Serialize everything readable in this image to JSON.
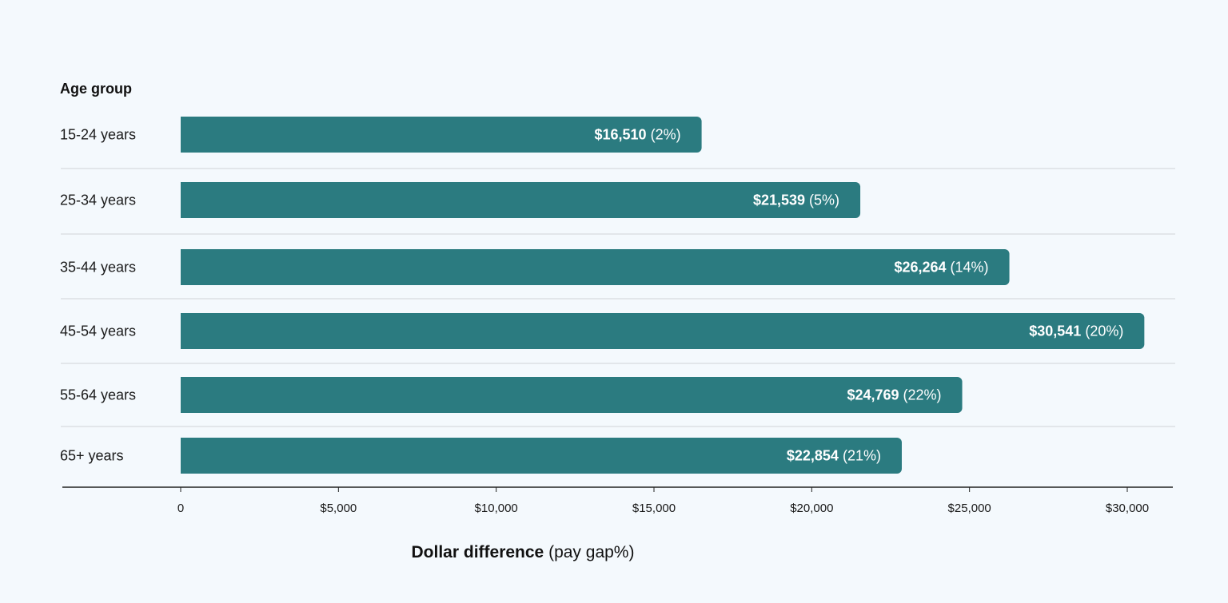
{
  "chart_data": {
    "type": "bar",
    "orientation": "horizontal",
    "ylabel": "Age group",
    "xlabel_bold": "Dollar difference",
    "xlabel_rest": "(pay gap%)",
    "categories": [
      "15-24 years",
      "25-34 years",
      "35-44 years",
      "45-54 years",
      "55-64 years",
      "65+ years"
    ],
    "values": [
      16510,
      21539,
      26264,
      30541,
      24769,
      22854
    ],
    "value_labels": [
      "$16,510",
      "$21,539",
      "$26,264",
      "$30,541",
      "$24,769",
      "$22,854"
    ],
    "pay_gap_labels": [
      "(2%)",
      "(5%)",
      "(14%)",
      "(20%)",
      "(22%)",
      "(21%)"
    ],
    "xlim": [
      0,
      30000
    ],
    "x_ticks": [
      0,
      5000,
      10000,
      15000,
      20000,
      25000,
      30000
    ],
    "x_tick_labels": [
      "0",
      "$5,000",
      "$10,000",
      "$15,000",
      "$20,000",
      "$25,000",
      "$30,000"
    ],
    "grid": false,
    "legend": "none",
    "colors": {
      "bar": "#2b7b80",
      "background": "#f4f9fd",
      "bar_text": "#ffffff"
    }
  }
}
